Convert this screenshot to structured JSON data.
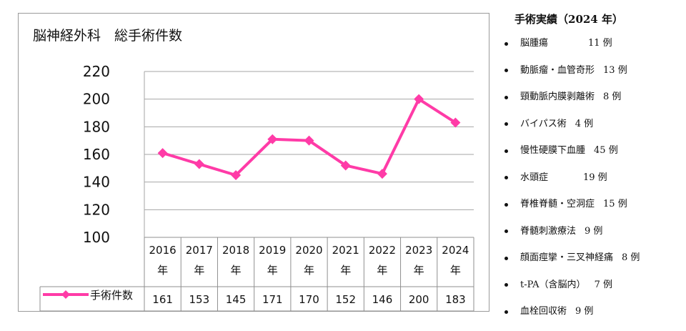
{
  "chart_data": {
    "type": "line",
    "title": "脳神経外科　総手術件数",
    "categories": [
      {
        "year": "2016",
        "unit": "年"
      },
      {
        "year": "2017",
        "unit": "年"
      },
      {
        "year": "2018",
        "unit": "年"
      },
      {
        "year": "2019",
        "unit": "年"
      },
      {
        "year": "2020",
        "unit": "年"
      },
      {
        "year": "2021",
        "unit": "年"
      },
      {
        "year": "2022",
        "unit": "年"
      },
      {
        "year": "2023",
        "unit": "年"
      },
      {
        "year": "2024",
        "unit": "年"
      }
    ],
    "series": [
      {
        "name": "手術件数",
        "values": [
          161,
          153,
          145,
          171,
          170,
          152,
          146,
          200,
          183
        ],
        "color": "#ff3ba7"
      }
    ],
    "ylim": [
      100,
      220
    ],
    "yticks": [
      "100",
      "120",
      "140",
      "160",
      "180",
      "200",
      "220"
    ],
    "grid": true,
    "legend": "data-table-left",
    "xlabel": "",
    "ylabel": ""
  },
  "surgery_list": {
    "title": "手術実績（2024 年）",
    "items": [
      {
        "name": "脳腫瘍",
        "count": "11 例"
      },
      {
        "name": "動脈瘤・血管奇形",
        "count": "13 例"
      },
      {
        "name": "頸動脈内膜剥離術",
        "count": "8 例"
      },
      {
        "name": "バイパス術",
        "count": "4 例"
      },
      {
        "name": "慢性硬膜下血腫",
        "count": "45 例"
      },
      {
        "name": "水頭症",
        "count": "19 例"
      },
      {
        "name": "脊椎脊髄・空洞症",
        "count": "15 例"
      },
      {
        "name": "脊髄刺激療法",
        "count": "9 例"
      },
      {
        "name": "顔面痙攣・三叉神経痛",
        "count": "8 例"
      },
      {
        "name": "t-PA（含脳内）",
        "count": "7 例"
      },
      {
        "name": "血栓回収術",
        "count": "9 例"
      }
    ]
  }
}
